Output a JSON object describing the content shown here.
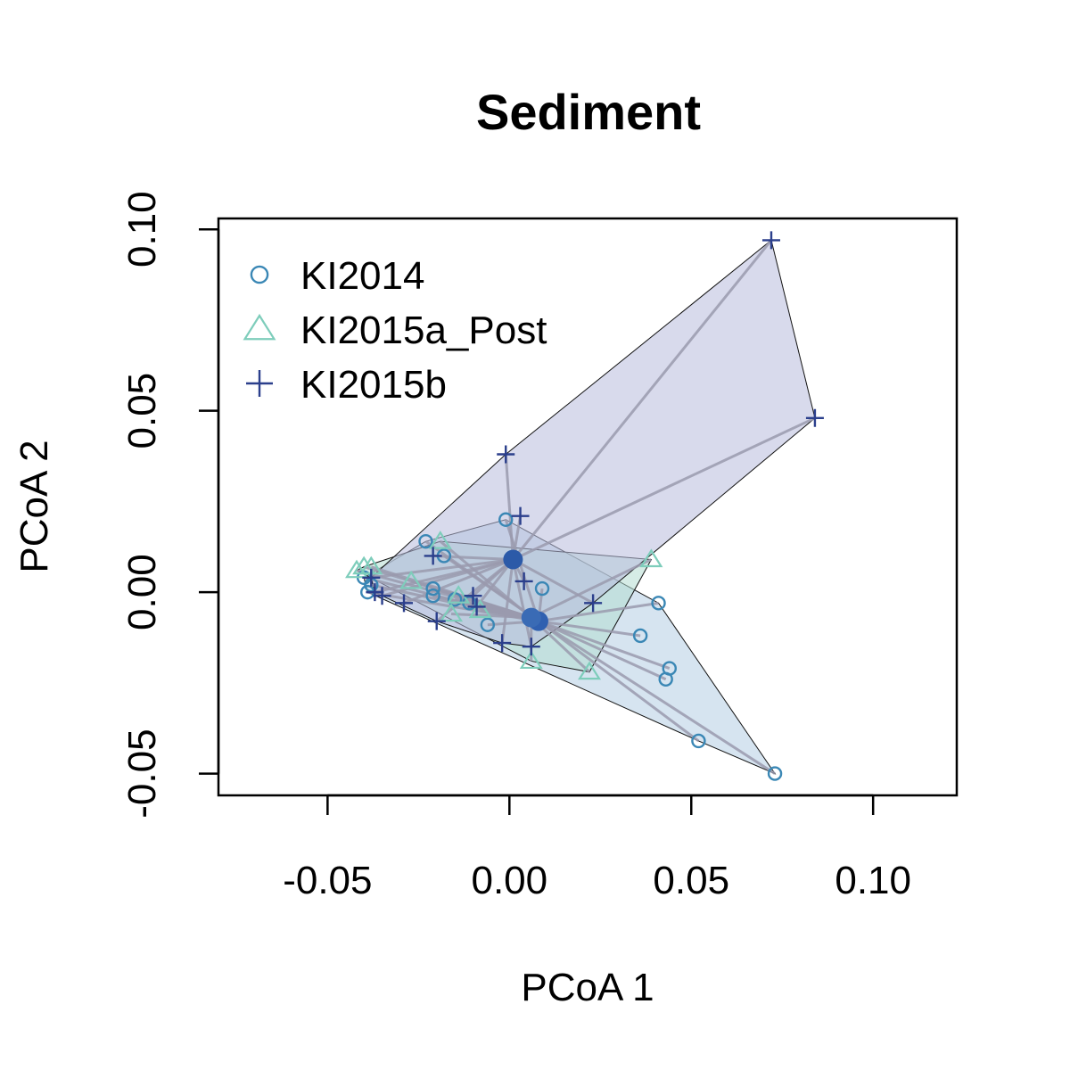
{
  "chart_data": {
    "type": "scatter",
    "title": "Sediment",
    "xlabel": "PCoA 1",
    "ylabel": "PCoA 2",
    "xlim": [
      -0.08,
      0.123
    ],
    "ylim": [
      -0.056,
      0.103
    ],
    "xticks": [
      -0.05,
      0.0,
      0.05,
      0.1
    ],
    "yticks": [
      -0.05,
      0.0,
      0.05,
      0.1
    ],
    "xtick_labels": [
      "-0.05",
      "0.00",
      "0.05",
      "0.10"
    ],
    "ytick_labels": [
      "-0.05",
      "0.00",
      "0.05",
      "0.10"
    ],
    "grid": false,
    "legend_position": "top-left",
    "series": [
      {
        "name": "KI2014",
        "marker": "circle",
        "color": "#3a87b5",
        "hull_fill": "#b4cde4",
        "centroid": [
          0.008,
          -0.008
        ],
        "points": [
          [
            0.073,
            -0.05
          ],
          [
            0.052,
            -0.041
          ],
          [
            0.044,
            -0.021
          ],
          [
            0.043,
            -0.024
          ],
          [
            0.041,
            -0.003
          ],
          [
            0.036,
            -0.012
          ],
          [
            0.009,
            0.001
          ],
          [
            -0.001,
            0.02
          ],
          [
            -0.018,
            0.01
          ],
          [
            -0.023,
            0.014
          ],
          [
            -0.021,
            0.001
          ],
          [
            -0.021,
            -0.001
          ],
          [
            -0.011,
            -0.003
          ],
          [
            -0.006,
            -0.009
          ],
          [
            -0.038,
            0.002
          ],
          [
            -0.039,
            0.0
          ],
          [
            -0.04,
            0.004
          ],
          [
            -0.015,
            -0.002
          ]
        ]
      },
      {
        "name": "KI2015a_Post",
        "marker": "triangle",
        "color": "#7ecdbb",
        "hull_fill": "#b4dcd2",
        "centroid": [
          0.006,
          -0.007
        ],
        "points": [
          [
            0.039,
            0.009
          ],
          [
            0.022,
            -0.022
          ],
          [
            0.006,
            -0.019
          ],
          [
            -0.016,
            -0.006
          ],
          [
            -0.019,
            0.014
          ],
          [
            -0.027,
            0.003
          ],
          [
            -0.04,
            0.007
          ],
          [
            -0.042,
            0.006
          ],
          [
            -0.038,
            0.007
          ],
          [
            -0.014,
            -0.001
          ],
          [
            -0.008,
            -0.005
          ]
        ]
      },
      {
        "name": "KI2015b",
        "marker": "plus",
        "color": "#2b3f8c",
        "hull_fill": "#b8bcdc",
        "centroid": [
          0.001,
          0.009
        ],
        "points": [
          [
            0.072,
            0.097
          ],
          [
            0.084,
            0.048
          ],
          [
            -0.001,
            0.038
          ],
          [
            0.003,
            0.021
          ],
          [
            0.004,
            0.003
          ],
          [
            0.023,
            -0.003
          ],
          [
            0.006,
            -0.015
          ],
          [
            -0.002,
            -0.014
          ],
          [
            -0.009,
            -0.004
          ],
          [
            -0.01,
            -0.001
          ],
          [
            -0.02,
            -0.008
          ],
          [
            -0.029,
            -0.003
          ],
          [
            -0.035,
            -0.001
          ],
          [
            -0.037,
            0.0
          ],
          [
            -0.038,
            0.004
          ],
          [
            -0.021,
            0.01
          ]
        ]
      }
    ]
  }
}
